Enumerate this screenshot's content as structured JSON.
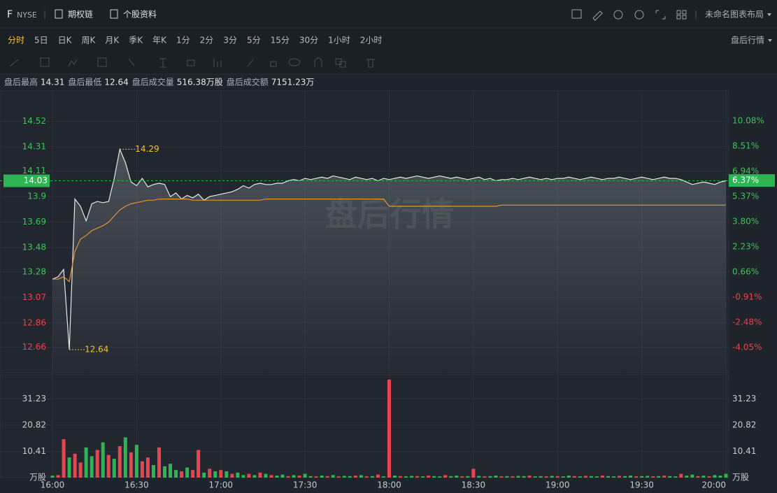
{
  "header": {
    "symbol": "F",
    "exchange": "NYSE",
    "links": [
      "期权链",
      "个股资料"
    ],
    "layout_name": "未命名图表布局"
  },
  "periods": {
    "items": [
      "分时",
      "5日",
      "日K",
      "周K",
      "月K",
      "季K",
      "年K",
      "1分",
      "2分",
      "3分",
      "5分",
      "15分",
      "30分",
      "1小时",
      "2小时"
    ],
    "active_index": 0,
    "after_hours": "盘后行情"
  },
  "stats": [
    {
      "label": "盘后最高",
      "value": "14.31"
    },
    {
      "label": "盘后最低",
      "value": "12.64"
    },
    {
      "label": "盘后成交量",
      "value": "516.38万股"
    },
    {
      "label": "盘后成交额",
      "value": "7151.23万"
    }
  ],
  "chart_data": [
    {
      "type": "line",
      "watermark": "盘后行情",
      "x": [
        "16:00",
        "16:02",
        "16:04",
        "16:06",
        "16:08",
        "16:10",
        "16:12",
        "16:14",
        "16:16",
        "16:18",
        "16:20",
        "16:22",
        "16:24",
        "16:26",
        "16:28",
        "16:30",
        "16:32",
        "16:34",
        "16:36",
        "16:38",
        "16:40",
        "16:42",
        "16:44",
        "16:46",
        "16:48",
        "16:50",
        "16:52",
        "16:54",
        "16:56",
        "16:58",
        "17:00",
        "17:02",
        "17:04",
        "17:06",
        "17:08",
        "17:10",
        "17:12",
        "17:14",
        "17:16",
        "17:18",
        "17:20",
        "17:22",
        "17:24",
        "17:26",
        "17:28",
        "17:30",
        "17:32",
        "17:34",
        "17:36",
        "17:38",
        "17:40",
        "17:42",
        "17:44",
        "17:46",
        "17:48",
        "17:50",
        "17:52",
        "17:54",
        "17:56",
        "17:58",
        "18:00",
        "18:02",
        "18:04",
        "18:06",
        "18:08",
        "18:10",
        "18:12",
        "18:14",
        "18:16",
        "18:18",
        "18:20",
        "18:22",
        "18:24",
        "18:26",
        "18:28",
        "18:30",
        "18:32",
        "18:34",
        "18:36",
        "18:38",
        "18:40",
        "18:42",
        "18:44",
        "18:46",
        "18:48",
        "18:50",
        "18:52",
        "18:54",
        "18:56",
        "18:58",
        "19:00",
        "19:02",
        "19:04",
        "19:06",
        "19:08",
        "19:10",
        "19:12",
        "19:14",
        "19:16",
        "19:18",
        "19:20",
        "19:22",
        "19:24",
        "19:26",
        "19:28",
        "19:30",
        "19:32",
        "19:34",
        "19:36",
        "19:38",
        "19:40",
        "19:42",
        "19:44",
        "19:46",
        "19:48",
        "19:50",
        "19:52",
        "19:54",
        "19:56",
        "19:58",
        "20:00"
      ],
      "series": [
        {
          "color": "#e6e8ec",
          "fill": true,
          "values": [
            13.22,
            13.24,
            13.3,
            12.64,
            13.88,
            13.82,
            13.7,
            13.84,
            13.86,
            13.85,
            13.86,
            14.05,
            14.29,
            14.18,
            14.02,
            13.99,
            14.05,
            13.98,
            14.0,
            14.01,
            14.0,
            13.9,
            13.93,
            13.88,
            13.91,
            13.89,
            13.92,
            13.87,
            13.9,
            13.91,
            13.92,
            13.93,
            13.94,
            13.96,
            13.99,
            13.97,
            14.0,
            14.01,
            14.0,
            14.0,
            14.01,
            14.01,
            14.03,
            14.04,
            14.03,
            14.05,
            14.04,
            14.05,
            14.06,
            14.05,
            14.07,
            14.06,
            14.05,
            14.04,
            14.06,
            14.05,
            14.04,
            14.05,
            14.03,
            14.05,
            14.04,
            14.05,
            14.06,
            14.05,
            14.06,
            14.07,
            14.06,
            14.05,
            14.06,
            14.07,
            14.06,
            14.05,
            14.06,
            14.05,
            14.04,
            14.05,
            14.06,
            14.04,
            14.05,
            14.03,
            14.04,
            14.04,
            14.05,
            14.04,
            14.05,
            14.06,
            14.05,
            14.04,
            14.05,
            14.04,
            14.05,
            14.05,
            14.06,
            14.05,
            14.04,
            14.05,
            14.06,
            14.05,
            14.04,
            14.05,
            14.05,
            14.06,
            14.05,
            14.04,
            14.05,
            14.06,
            14.05,
            14.04,
            14.05,
            14.06,
            14.05,
            14.05,
            14.04,
            14.02,
            14.0,
            14.01,
            14.02,
            14.01,
            14.0,
            14.02,
            14.03
          ]
        },
        {
          "color": "#e8922e",
          "fill": false,
          "values": [
            13.22,
            13.22,
            13.24,
            13.2,
            13.45,
            13.55,
            13.58,
            13.62,
            13.64,
            13.66,
            13.69,
            13.74,
            13.79,
            13.82,
            13.84,
            13.85,
            13.86,
            13.87,
            13.87,
            13.88,
            13.88,
            13.88,
            13.88,
            13.88,
            13.88,
            13.87,
            13.87,
            13.87,
            13.87,
            13.87,
            13.87,
            13.87,
            13.87,
            13.87,
            13.87,
            13.87,
            13.87,
            13.87,
            13.88,
            13.88,
            13.88,
            13.88,
            13.88,
            13.88,
            13.88,
            13.88,
            13.88,
            13.88,
            13.88,
            13.88,
            13.88,
            13.88,
            13.88,
            13.88,
            13.88,
            13.88,
            13.88,
            13.88,
            13.88,
            13.88,
            13.82,
            13.82,
            13.82,
            13.82,
            13.82,
            13.82,
            13.82,
            13.82,
            13.82,
            13.82,
            13.82,
            13.82,
            13.82,
            13.82,
            13.82,
            13.82,
            13.82,
            13.82,
            13.82,
            13.82,
            13.83,
            13.83,
            13.83,
            13.83,
            13.83,
            13.83,
            13.83,
            13.83,
            13.83,
            13.83,
            13.83,
            13.83,
            13.83,
            13.83,
            13.83,
            13.83,
            13.83,
            13.83,
            13.83,
            13.83,
            13.83,
            13.83,
            13.83,
            13.83,
            13.83,
            13.83,
            13.83,
            13.83,
            13.83,
            13.83,
            13.83,
            13.83,
            13.83,
            13.83,
            13.83,
            13.83,
            13.83,
            13.83,
            13.83,
            13.83,
            13.83
          ]
        }
      ],
      "ylim": [
        12.45,
        14.77
      ],
      "yticks": [
        14.52,
        14.31,
        14.11,
        13.9,
        13.69,
        13.48,
        13.28,
        13.07,
        12.86,
        12.66
      ],
      "y2lim": [
        -5.62,
        11.96
      ],
      "y2ticks": [
        {
          "value": 10.08,
          "label": "10.08%"
        },
        {
          "value": 8.51,
          "label": "8.51%"
        },
        {
          "value": 6.94,
          "label": "6.94%"
        },
        {
          "value": 5.37,
          "label": "5.37%"
        },
        {
          "value": 3.8,
          "label": "3.80%"
        },
        {
          "value": 2.23,
          "label": "2.23%"
        },
        {
          "value": 0.66,
          "label": "0.66%"
        },
        {
          "value": -0.91,
          "label": "-0.91%"
        },
        {
          "value": -2.48,
          "label": "-2.48%"
        },
        {
          "value": -4.05,
          "label": "-4.05%"
        }
      ],
      "up_color": "#3cc25a",
      "down_color": "#e8434e",
      "last_color": "#2db553",
      "last_price": 14.03,
      "last_change": {
        "value": 6.37,
        "label": "6.37%"
      },
      "annotations": [
        {
          "x": "16:24",
          "value": 14.29
        },
        {
          "x": "16:06",
          "value": 12.64
        }
      ],
      "annotation_color": "#f2c230",
      "grid": true
    },
    {
      "type": "bar",
      "unit": "万股",
      "values": [
        0.8,
        1.0,
        15.3,
        8.0,
        9.5,
        6.0,
        12.0,
        8.5,
        11.0,
        14.0,
        9.0,
        7.5,
        12.5,
        16.0,
        10.0,
        13.0,
        6.5,
        8.0,
        5.0,
        12.0,
        4.5,
        5.5,
        3.0,
        2.5,
        4.0,
        3.0,
        11.0,
        2.0,
        3.5,
        2.5,
        3.0,
        2.5,
        1.5,
        2.0,
        1.0,
        1.5,
        1.0,
        2.0,
        1.5,
        1.0,
        0.8,
        1.2,
        0.6,
        1.0,
        0.8,
        1.5,
        0.6,
        0.5,
        0.8,
        0.6,
        1.0,
        0.5,
        0.7,
        0.6,
        0.8,
        1.0,
        0.5,
        0.6,
        1.2,
        0.5,
        38.9,
        0.8,
        0.6,
        0.5,
        0.7,
        0.6,
        0.5,
        0.8,
        0.6,
        0.5,
        1.0,
        0.6,
        0.8,
        0.5,
        0.6,
        3.5,
        0.7,
        0.5,
        0.6,
        0.8,
        0.5,
        0.6,
        0.5,
        0.7,
        0.6,
        0.8,
        0.5,
        0.6,
        0.5,
        0.7,
        0.6,
        0.5,
        0.8,
        0.6,
        0.5,
        0.7,
        0.6,
        0.5,
        0.8,
        0.6,
        0.5,
        0.7,
        0.6,
        0.8,
        0.5,
        0.6,
        0.7,
        0.5,
        0.6,
        0.8,
        0.6,
        0.5,
        1.5,
        0.8,
        1.2,
        0.6,
        0.8,
        0.5,
        1.0,
        0.8,
        1.5
      ],
      "colors": [
        "#2db553",
        "#e9434f",
        "#e9434f",
        "#2db553",
        "#e9434f",
        "#e9434f",
        "#2db553",
        "#2db553",
        "#e9434f",
        "#2db553",
        "#e9434f",
        "#2db553",
        "#e9434f",
        "#2db553",
        "#e9434f",
        "#2db553",
        "#e9434f",
        "#e9434f",
        "#2db553",
        "#e9434f",
        "#2db553",
        "#2db553",
        "#2db553",
        "#e9434f",
        "#2db553",
        "#e9434f",
        "#e9434f",
        "#2db553",
        "#e9434f",
        "#2db553",
        "#e9434f",
        "#2db553",
        "#e9434f",
        "#2db553",
        "#2db553",
        "#e9434f",
        "#2db553",
        "#e9434f",
        "#2db553",
        "#e9434f",
        "#2db553",
        "#2db553",
        "#e9434f",
        "#2db553",
        "#e9434f",
        "#2db553",
        "#2db553",
        "#e9434f",
        "#2db553",
        "#e9434f",
        "#2db553",
        "#e9434f",
        "#2db553",
        "#2db553",
        "#e9434f",
        "#2db553",
        "#e9434f",
        "#2db553",
        "#e9434f",
        "#2db553",
        "#e9434f",
        "#2db553",
        "#e9434f",
        "#2db553",
        "#2db553",
        "#e9434f",
        "#2db553",
        "#e9434f",
        "#2db553",
        "#2db553",
        "#e9434f",
        "#2db553",
        "#2db553",
        "#e9434f",
        "#2db553",
        "#e9434f",
        "#2db553",
        "#e9434f",
        "#2db553",
        "#2db553",
        "#e9434f",
        "#2db553",
        "#e9434f",
        "#2db553",
        "#2db553",
        "#e9434f",
        "#2db553",
        "#2db553",
        "#e9434f",
        "#2db553",
        "#e9434f",
        "#2db553",
        "#2db553",
        "#e9434f",
        "#2db553",
        "#e9434f",
        "#2db553",
        "#2db553",
        "#e9434f",
        "#2db553",
        "#2db553",
        "#e9434f",
        "#2db553",
        "#2db553",
        "#e9434f",
        "#2db553",
        "#2db553",
        "#e9434f",
        "#2db553",
        "#e9434f",
        "#2db553",
        "#2db553",
        "#e9434f",
        "#2db553",
        "#2db553",
        "#e9434f",
        "#2db553",
        "#e9434f",
        "#2db553",
        "#2db553",
        "#2db553"
      ],
      "ylim": [
        0,
        39.7
      ],
      "yticks": [
        10.41,
        20.82,
        31.23
      ],
      "xticks": [
        "16:00",
        "16:30",
        "17:00",
        "17:30",
        "18:00",
        "18:30",
        "19:00",
        "19:30",
        "20:00"
      ]
    }
  ]
}
